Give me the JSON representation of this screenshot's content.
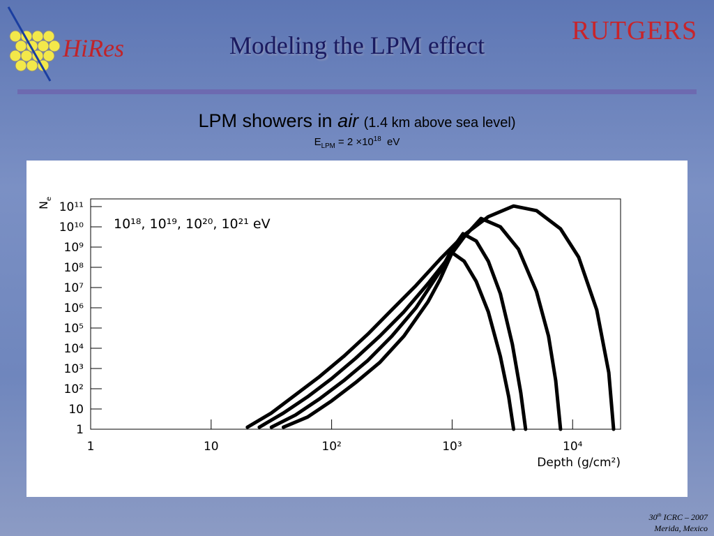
{
  "header": {
    "title": "Modeling the LPM effect",
    "logo_left": "HiRes",
    "logo_right": "RUTGERS"
  },
  "subtitle": {
    "pre": "LPM showers in ",
    "emph": "air",
    "post": "(1.4 km above sea level)"
  },
  "energy": {
    "symbol": "E",
    "sub": "LPM",
    "text": "= 2 ×10",
    "sup": "18",
    "unit": "eV"
  },
  "footer": {
    "num": "30",
    "sup": "th",
    "event": "ICRC – 2007",
    "place": "Merida, Mexico"
  },
  "chart_data": {
    "type": "line",
    "x_label": "Depth (g/cm²)",
    "y_label": "N",
    "y_label_sub": "e",
    "annotation": "10¹⁸, 10¹⁹, 10²⁰, 10²¹ eV",
    "log_x": true,
    "log_y": true,
    "xlim": [
      1,
      25000
    ],
    "ylim": [
      1,
      240000000000.0
    ],
    "xticks": [
      1,
      10,
      {
        "value": 100,
        "label": "10²"
      },
      {
        "value": 1000,
        "label": "10³"
      },
      {
        "value": 10000,
        "label": "10⁴"
      }
    ],
    "yticks": [
      1,
      10,
      {
        "value": 100,
        "label": "10²"
      },
      {
        "value": 1000,
        "label": "10³"
      },
      {
        "value": 10000,
        "label": "10⁴"
      },
      {
        "value": 100000,
        "label": "10⁵"
      },
      {
        "value": 1000000,
        "label": "10⁶"
      },
      {
        "value": 10000000,
        "label": "10⁷"
      },
      {
        "value": 100000000,
        "label": "10⁸"
      },
      {
        "value": 1000000000,
        "label": "10⁹"
      },
      {
        "value": 10000000000,
        "label": "10¹⁰"
      },
      {
        "value": 100000000000,
        "label": "10¹¹"
      }
    ],
    "color": "#000000",
    "series": [
      {
        "x": [
          39.8,
          63.1,
          100,
          158,
          251,
          398,
          631,
          794,
          1000,
          1259,
          1585,
          1995,
          2512,
          2951,
          3236
        ],
        "values": [
          1.26,
          3.98,
          25.1,
          200,
          1995,
          39800,
          2000000.0,
          25100000.0,
          525000000.0,
          200000000.0,
          20000000.0,
          631000.0,
          3980,
          39.8,
          1
        ]
      },
      {
        "x": [
          31.6,
          50.1,
          79.4,
          126,
          200,
          316,
          501,
          794,
          1000,
          1230,
          1585,
          1995,
          2512,
          3162,
          3715,
          4074
        ],
        "values": [
          1.26,
          5.01,
          31.6,
          251,
          2512,
          39800,
          1000000.0,
          63100000.0,
          794000000.0,
          4570000000.0,
          2000000000.0,
          200000000.0,
          5010000.0,
          15800,
          63.1,
          1
        ]
      },
      {
        "x": [
          25.1,
          39.8,
          63.1,
          100,
          158,
          251,
          398,
          631,
          1000,
          1259,
          1738,
          2512,
          3548,
          5012,
          6310,
          7244,
          7943
        ],
        "values": [
          1.26,
          6.31,
          39.8,
          316,
          3162,
          39800,
          631000.0,
          15800000.0,
          501000000.0,
          3160000000.0,
          25700000000.0,
          10000000000.0,
          794000000.0,
          6310000.0,
          39800,
          251,
          1
        ]
      },
      {
        "x": [
          20,
          31.6,
          50.1,
          79.4,
          126,
          200,
          316,
          501,
          794,
          1259,
          1995,
          3236,
          5012,
          7943,
          11220,
          15850,
          19950,
          21880
        ],
        "values": [
          1.26,
          6.31,
          50.1,
          398,
          3981,
          50100,
          794000.0,
          12600000.0,
          251000000.0,
          3980000000.0,
          31600000000.0,
          107000000000.0,
          63100000000.0,
          7940000000.0,
          316000000.0,
          794000.0,
          631,
          1
        ]
      }
    ]
  }
}
